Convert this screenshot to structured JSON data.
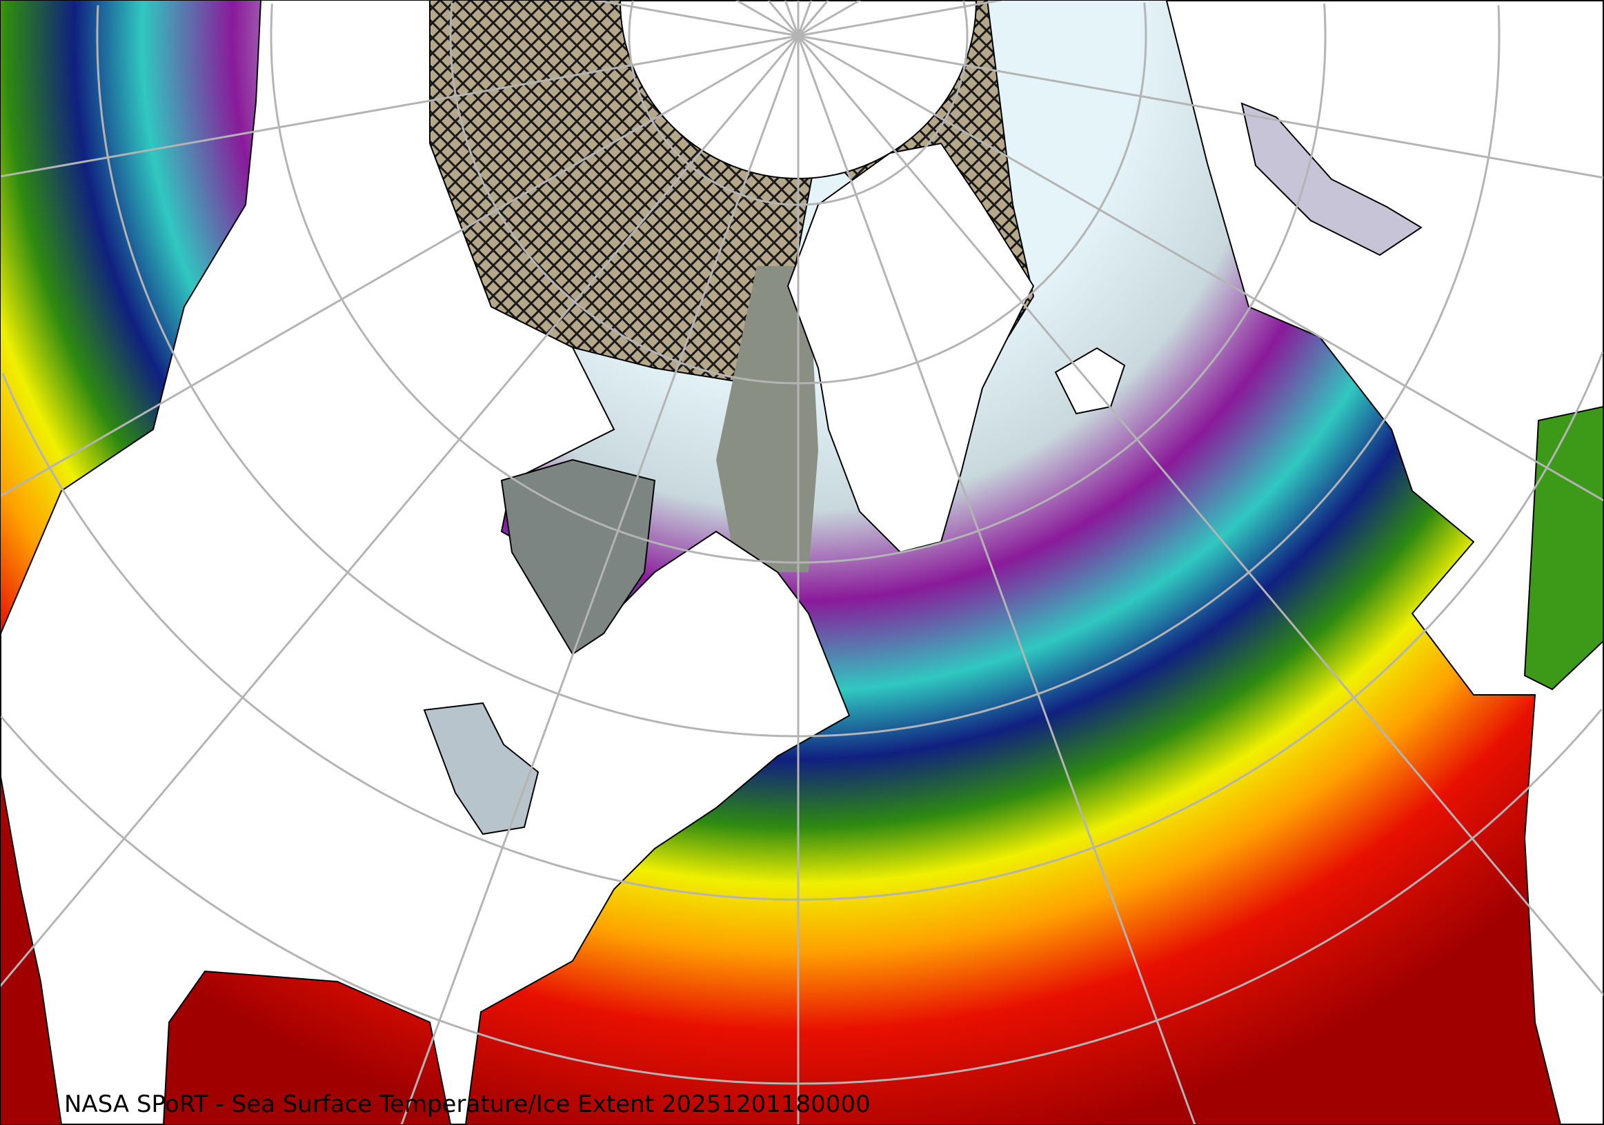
{
  "caption": "NASA SPoRT - Sea Surface Temperature/Ice Extent 20251201180000",
  "colors": {
    "ice_hatch_fill": "#b5a88a",
    "land": "#ffffff",
    "coastline": "#000000",
    "graticule": "#b4b4b4",
    "sst_scale": [
      "#e4f4f8",
      "#c8d8dc",
      "#8a1a9a",
      "#30c8c0",
      "#102080",
      "#2e8a10",
      "#f0f000",
      "#ffa000",
      "#e81000",
      "#a00000"
    ]
  },
  "layers": [
    "sea-surface-temperature",
    "sea-ice-extent",
    "coastlines",
    "political-boundaries",
    "graticule"
  ]
}
